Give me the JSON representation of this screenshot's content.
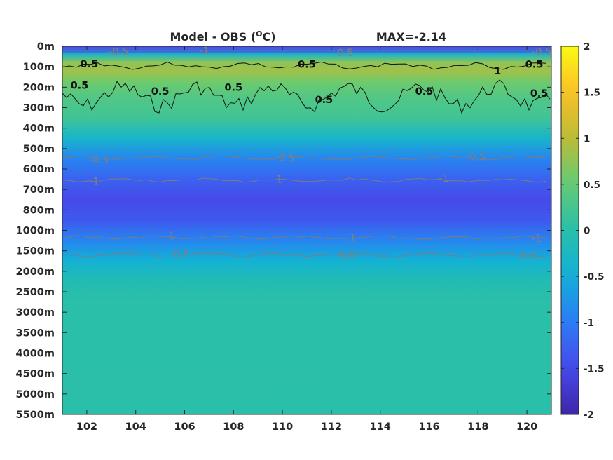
{
  "chart_data": {
    "type": "heatmap",
    "title": "Model - OBS (",
    "title_sup": "O",
    "title_tail": "C)",
    "max_text": "MAX=-2.14",
    "x_ticks": [
      102,
      104,
      106,
      108,
      110,
      112,
      114,
      116,
      118,
      120
    ],
    "xlim": [
      101,
      121
    ],
    "y_tick_labels": [
      "0m",
      "100m",
      "200m",
      "300m",
      "400m",
      "500m",
      "600m",
      "700m",
      "800m",
      "1000m",
      "1500m",
      "2000m",
      "2500m",
      "3000m",
      "3500m",
      "4000m",
      "4500m",
      "5000m",
      "5500m"
    ],
    "colorbar": {
      "ticks": [
        2,
        1.5,
        1,
        0.5,
        0,
        -0.5,
        -1,
        -1.5,
        -2
      ],
      "range": [
        -2,
        2
      ],
      "colormap": "parula"
    },
    "depth_profile": [
      {
        "level": 0.0,
        "value": -1.3
      },
      {
        "level": 0.4,
        "value": -0.3
      },
      {
        "level": 0.8,
        "value": 0.75
      },
      {
        "level": 1.2,
        "value": 0.85
      },
      {
        "level": 1.8,
        "value": 0.55
      },
      {
        "level": 2.5,
        "value": 0.35
      },
      {
        "level": 3.5,
        "value": 0.2
      },
      {
        "level": 4.5,
        "value": -0.35
      },
      {
        "level": 5.5,
        "value": -0.9
      },
      {
        "level": 6.5,
        "value": -1.25
      },
      {
        "level": 7.5,
        "value": -1.5
      },
      {
        "level": 8.5,
        "value": -1.35
      },
      {
        "level": 9.5,
        "value": -0.9
      },
      {
        "level": 10.5,
        "value": -0.45
      },
      {
        "level": 11.5,
        "value": -0.1
      },
      {
        "level": 12.5,
        "value": 0.02
      },
      {
        "level": 18.0,
        "value": 0.02
      }
    ],
    "contour_labels": [
      {
        "text": "-0.5",
        "x": 103.3,
        "level": 0.25,
        "color": "gray"
      },
      {
        "text": "-1",
        "x": 106.8,
        "level": 0.2,
        "color": "gray"
      },
      {
        "text": "-0.5",
        "x": 112.5,
        "level": 0.3,
        "color": "gray"
      },
      {
        "text": "-0.5",
        "x": 120.6,
        "level": 0.25,
        "color": "gray"
      },
      {
        "text": "0.5",
        "x": 102.1,
        "level": 0.85,
        "color": "black"
      },
      {
        "text": "0.5",
        "x": 111.0,
        "level": 0.88,
        "color": "black"
      },
      {
        "text": "0.5",
        "x": 120.3,
        "level": 0.88,
        "color": "black"
      },
      {
        "text": "1",
        "x": 118.8,
        "level": 1.2,
        "color": "black"
      },
      {
        "text": "0.5",
        "x": 101.7,
        "level": 1.9,
        "color": "black"
      },
      {
        "text": "0.5",
        "x": 105.0,
        "level": 2.2,
        "color": "black"
      },
      {
        "text": "0.5",
        "x": 108.0,
        "level": 2.0,
        "color": "black"
      },
      {
        "text": "0.5",
        "x": 111.7,
        "level": 2.6,
        "color": "black"
      },
      {
        "text": "0.5",
        "x": 115.8,
        "level": 2.2,
        "color": "black"
      },
      {
        "text": "0.5",
        "x": 120.5,
        "level": 2.3,
        "color": "black"
      },
      {
        "text": "-0.5",
        "x": 102.5,
        "level": 5.55,
        "color": "gray"
      },
      {
        "text": "-0.5",
        "x": 110.1,
        "level": 5.45,
        "color": "gray"
      },
      {
        "text": "-0.5",
        "x": 117.9,
        "level": 5.4,
        "color": "gray"
      },
      {
        "text": "-1",
        "x": 102.3,
        "level": 6.6,
        "color": "gray"
      },
      {
        "text": "-1",
        "x": 109.8,
        "level": 6.5,
        "color": "gray"
      },
      {
        "text": "-1",
        "x": 116.6,
        "level": 6.45,
        "color": "gray"
      },
      {
        "text": "-1",
        "x": 105.4,
        "level": 9.25,
        "color": "gray"
      },
      {
        "text": "-1",
        "x": 112.8,
        "level": 9.35,
        "color": "gray"
      },
      {
        "text": "-1",
        "x": 120.4,
        "level": 9.4,
        "color": "gray"
      },
      {
        "text": "-0.5",
        "x": 105.8,
        "level": 10.15,
        "color": "gray"
      },
      {
        "text": "-0.5",
        "x": 112.6,
        "level": 10.2,
        "color": "gray"
      },
      {
        "text": "-0.5",
        "x": 120.0,
        "level": 10.25,
        "color": "gray"
      }
    ]
  }
}
